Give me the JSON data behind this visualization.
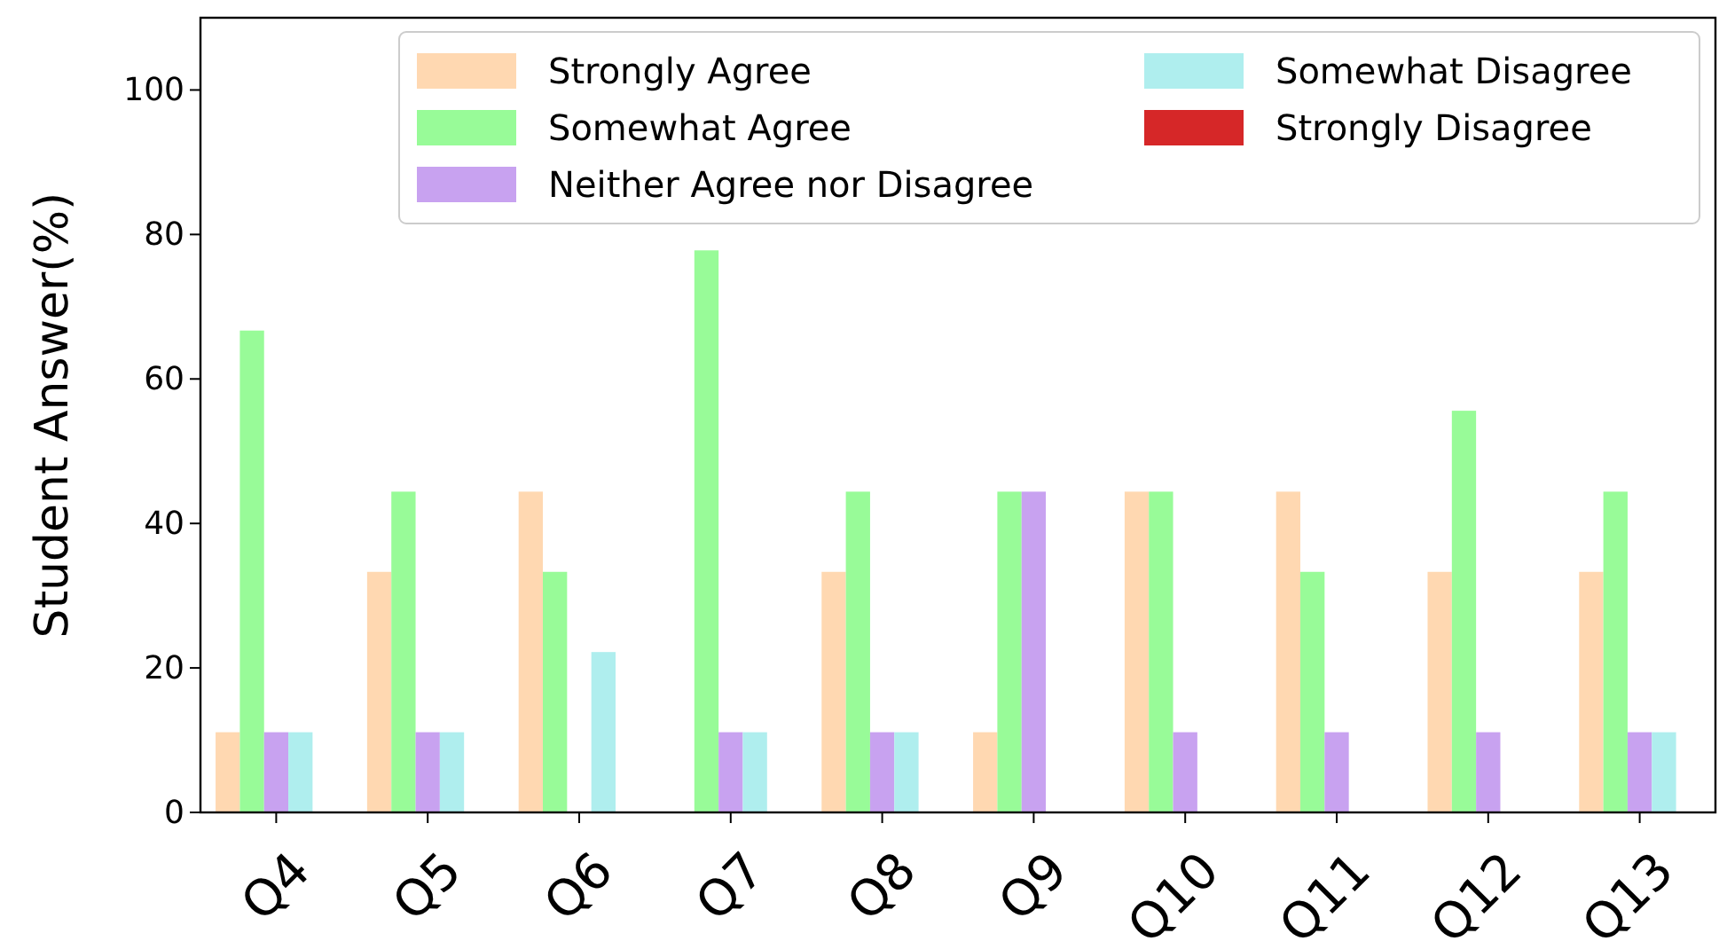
{
  "chart_data": {
    "type": "bar",
    "ylabel": "Student Answer(%)",
    "categories": [
      "Q4",
      "Q5",
      "Q6",
      "Q7",
      "Q8",
      "Q9",
      "Q10",
      "Q11",
      "Q12",
      "Q13"
    ],
    "series": [
      {
        "name": "Strongly Agree",
        "color": "#ffd8b1",
        "values": [
          11.1,
          33.3,
          44.4,
          0,
          33.3,
          11.1,
          44.4,
          44.4,
          33.3,
          33.3
        ]
      },
      {
        "name": "Somewhat Agree",
        "color": "#98fb98",
        "values": [
          66.7,
          44.4,
          33.3,
          77.8,
          44.4,
          44.4,
          44.4,
          33.3,
          55.6,
          44.4
        ]
      },
      {
        "name": "Neither Agree nor Disagree",
        "color": "#c8a2f0",
        "values": [
          11.1,
          11.1,
          0,
          11.1,
          11.1,
          44.4,
          11.1,
          11.1,
          11.1,
          11.1
        ]
      },
      {
        "name": "Somewhat Disagree",
        "color": "#afeeee",
        "values": [
          11.1,
          11.1,
          22.2,
          11.1,
          11.1,
          0,
          0,
          0,
          0,
          11.1
        ]
      },
      {
        "name": "Strongly Disagree",
        "color": "#d62728",
        "values": [
          0,
          0,
          0,
          0,
          0,
          0,
          0,
          0,
          0,
          0
        ]
      }
    ],
    "ylim": [
      0,
      110
    ],
    "yticks": [
      0,
      20,
      40,
      60,
      80,
      100
    ],
    "grid": false,
    "legend": "top right"
  }
}
